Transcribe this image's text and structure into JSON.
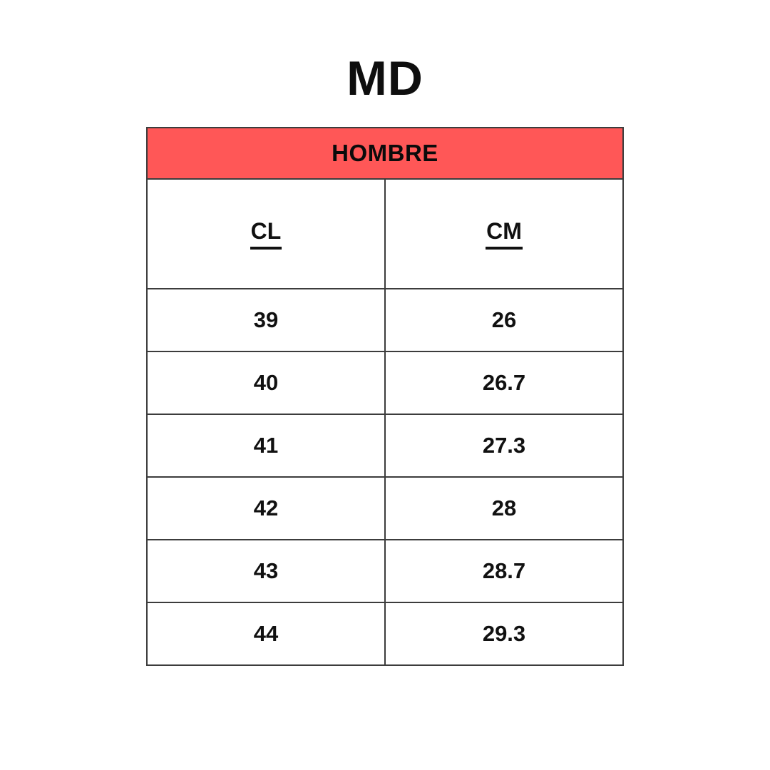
{
  "page": {
    "background_color": "#ffffff",
    "text_color": "#111111"
  },
  "title": "MD",
  "size_chart": {
    "category_header": "HOMBRE",
    "category_header_bg_color": "#FF5757",
    "border_color": "#3c3c3c",
    "columns": [
      {
        "label": "CL"
      },
      {
        "label": "CM"
      }
    ],
    "rows": [
      {
        "cl": "39",
        "cm": "26"
      },
      {
        "cl": "40",
        "cm": "26.7"
      },
      {
        "cl": "41",
        "cm": "27.3"
      },
      {
        "cl": "42",
        "cm": "28"
      },
      {
        "cl": "43",
        "cm": "28.7"
      },
      {
        "cl": "44",
        "cm": "29.3"
      }
    ]
  }
}
